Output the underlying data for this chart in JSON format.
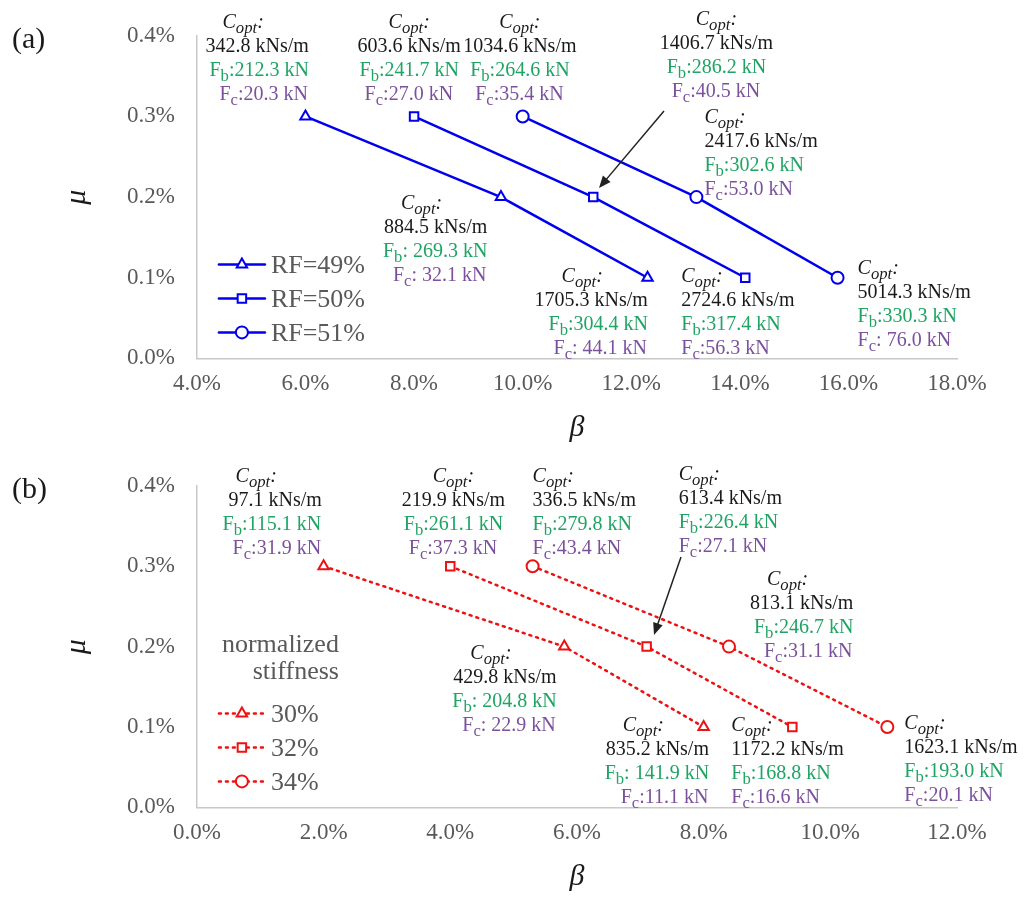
{
  "chart_data": [
    {
      "type": "line",
      "title": "(a)",
      "xlabel": "β",
      "ylabel": "μ",
      "xlim": [
        4,
        18
      ],
      "xticks": [
        {
          "value": 4,
          "label": "4.0%"
        },
        {
          "value": 6,
          "label": "6.0%"
        },
        {
          "value": 8,
          "label": "8.0%"
        },
        {
          "value": 10,
          "label": "10.0%"
        },
        {
          "value": 12,
          "label": "12.0%"
        },
        {
          "value": 14,
          "label": "14.0%"
        },
        {
          "value": 16,
          "label": "16.0%"
        },
        {
          "value": 18,
          "label": "18.0%"
        }
      ],
      "ylim": [
        0,
        0.4
      ],
      "yticks": [
        {
          "value": 0,
          "label": "0.0%"
        },
        {
          "value": 0.1,
          "label": "0.1%"
        },
        {
          "value": 0.2,
          "label": "0.2%"
        },
        {
          "value": 0.3,
          "label": "0.3%"
        },
        {
          "value": 0.4,
          "label": "0.4%"
        }
      ],
      "grid": false,
      "legend": "bottom left",
      "line_style": "solid",
      "series": [
        {
          "name": "RF=49%",
          "color": "#0000ee",
          "marker": "triangle",
          "x": [
            6.0,
            9.6,
            12.3
          ],
          "values": [
            0.3,
            0.2,
            0.1
          ]
        },
        {
          "name": "RF=50%",
          "color": "#0000ee",
          "marker": "square",
          "x": [
            8.0,
            11.3,
            14.1
          ],
          "values": [
            0.3,
            0.2,
            0.1
          ]
        },
        {
          "name": "RF=51%",
          "color": "#0000ee",
          "marker": "circle",
          "x": [
            10.0,
            13.2,
            15.8
          ],
          "values": [
            0.3,
            0.2,
            0.1
          ]
        }
      ],
      "annotations": [
        "C$_{opt}$:",
        "342.8 kNs/m",
        "F$_{b}$:212.3 kN",
        "F$_{c}$:20.3 kN",
        "C$_{opt}$:",
        "603.6 kNs/m",
        "F$_{b}$:241.7 kN",
        "F$_{c}$:27.0 kN",
        "C$_{opt}$:",
        "1034.6 kNs/m",
        "F$_{b}$:264.6 kN",
        "F$_{c}$:35.4 kN",
        "C$_{opt}$:",
        "1406.7 kNs/m",
        "F$_{b}$:286.2 kN",
        "F$_{c}$:40.5 kN",
        "C$_{opt}$:",
        "2417.6 kNs/m",
        "F$_{b}$:302.6 kN",
        "F$_{c}$:53.0 kN",
        "C$_{opt}$:",
        "884.5 kNs/m",
        "F$_{b}$: 269.3 kN",
        "F$_{c}$: 32.1 kN",
        "C$_{opt}$:",
        "1705.3 kNs/m",
        "F$_{b}$:304.4 kN",
        "F$_{c}$: 44.1 kN",
        "C$_{opt}$:",
        "2724.6 kNs/m",
        "F$_{b}$:317.4 kN",
        "F$_{c}$:56.3 kN",
        "C$_{opt}$:",
        "5014.3 kNs/m",
        "F$_{b}$:330.3 kN",
        "F$_{c}$: 76.0 kN"
      ]
    },
    {
      "type": "line",
      "title": "(b)",
      "xlabel": "β",
      "ylabel": "μ",
      "xlim": [
        0,
        12
      ],
      "xticks": [
        {
          "value": 0,
          "label": "0.0%"
        },
        {
          "value": 2,
          "label": "2.0%"
        },
        {
          "value": 4,
          "label": "4.0%"
        },
        {
          "value": 6,
          "label": "6.0%"
        },
        {
          "value": 8,
          "label": "8.0%"
        },
        {
          "value": 10,
          "label": "10.0%"
        },
        {
          "value": 12,
          "label": "12.0%"
        }
      ],
      "ylim": [
        0,
        0.4
      ],
      "yticks": [
        {
          "value": 0,
          "label": "0.0%"
        },
        {
          "value": 0.1,
          "label": "0.1%"
        },
        {
          "value": 0.2,
          "label": "0.2%"
        },
        {
          "value": 0.3,
          "label": "0.3%"
        },
        {
          "value": 0.4,
          "label": "0.4%"
        }
      ],
      "grid": false,
      "legend": "bottom left",
      "legend_title": "normalized stiffness",
      "line_style": "dotted",
      "series": [
        {
          "name": "30%",
          "color": "#ee1111",
          "marker": "triangle",
          "x": [
            2.0,
            5.8,
            8.0
          ],
          "values": [
            0.3,
            0.2,
            0.1
          ]
        },
        {
          "name": "32%",
          "color": "#ee1111",
          "marker": "square",
          "x": [
            4.0,
            7.1,
            9.4
          ],
          "values": [
            0.3,
            0.2,
            0.1
          ]
        },
        {
          "name": "34%",
          "color": "#ee1111",
          "marker": "circle",
          "x": [
            5.3,
            8.4,
            10.9
          ],
          "values": [
            0.3,
            0.2,
            0.1
          ]
        }
      ],
      "annotations": [
        "C$_{opt}$:",
        "97.1 kNs/m",
        "F$_{b}$:115.1 kN",
        "F$_{c}$:31.9 kN",
        "C$_{opt}$:",
        "219.9 kNs/m",
        "F$_{b}$:261.1 kN",
        "F$_{c}$:37.3 kN",
        "C$_{opt}$:",
        "336.5 kNs/m",
        "F$_{b}$:279.8 kN",
        "F$_{c}$:43.4 kN",
        "C$_{opt}$:",
        "613.4 kNs/m",
        "F$_{b}$:226.4 kN",
        "F$_{c}$:27.1 kN",
        "C$_{opt}$:",
        "813.1 kNs/m",
        "F$_{b}$:246.7 kN",
        "F$_{c}$:31.1 kN",
        "C$_{opt}$:",
        "429.8 kNs/m",
        "F$_{b}$: 204.8 kN",
        "F$_{c}$: 22.9 kN",
        "C$_{opt}$:",
        "835.2 kNs/m",
        "F$_{b}$: 141.9 kN",
        "F$_{c}$:11.1 kN",
        "C$_{opt}$:",
        "1172.2 kNs/m",
        "F$_{b}$:168.8 kN",
        "F$_{c}$:16.6 kN",
        "C$_{opt}$:",
        "1623.1 kNs/m",
        "F$_{b}$:193.0 kN",
        "F$_{c}$:20.1 kN"
      ]
    }
  ]
}
